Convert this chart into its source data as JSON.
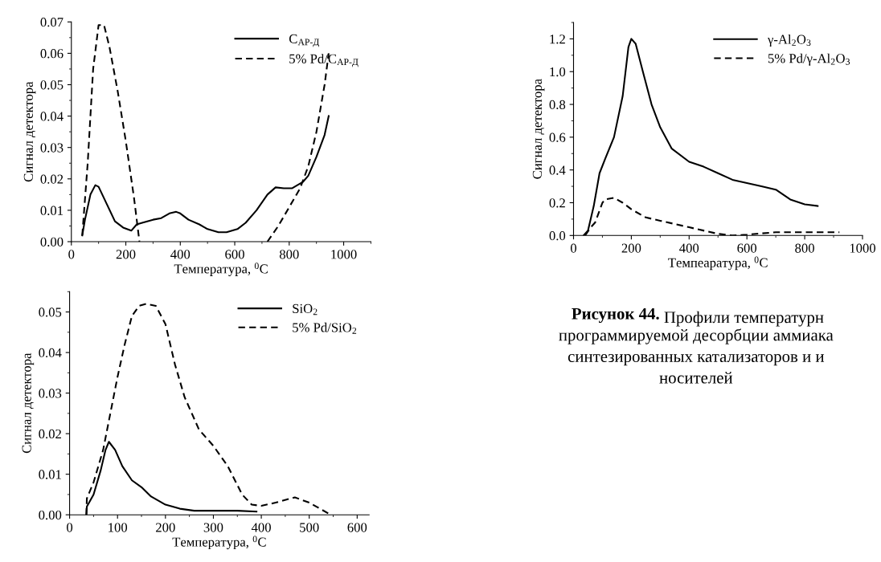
{
  "chart_data": [
    {
      "type": "line",
      "xlabel": "Температура, $^{0}$C",
      "ylabel": "Сигнал детектора",
      "xlim": [
        0,
        1100
      ],
      "xticks": [
        0,
        200,
        400,
        600,
        800,
        1000
      ],
      "ylim": [
        0,
        0.07
      ],
      "yticks": [
        {
          "value": 0,
          "label": "0.00"
        },
        {
          "value": 0.01,
          "label": "0.01"
        },
        {
          "value": 0.02,
          "label": "0.02"
        },
        {
          "value": 0.03,
          "label": "0.03"
        },
        {
          "value": 0.04,
          "label": "0.04"
        },
        {
          "value": 0.05,
          "label": "0.05"
        },
        {
          "value": 0.06,
          "label": "0.06"
        },
        {
          "value": 0.07,
          "label": "0.07"
        }
      ],
      "legend": "top right",
      "grid": false,
      "series": [
        {
          "name": "C$_{АР-Д}$",
          "color": "#000000",
          "line_style": "solid",
          "x": [
            40,
            50,
            70,
            88,
            100,
            130,
            160,
            190,
            220,
            240,
            260,
            300,
            330,
            360,
            385,
            400,
            430,
            470,
            500,
            540,
            570,
            610,
            640,
            680,
            720,
            750,
            780,
            810,
            850,
            870,
            900,
            930,
            945
          ],
          "values": [
            0.002,
            0.007,
            0.015,
            0.018,
            0.0175,
            0.012,
            0.0065,
            0.0045,
            0.0035,
            0.0055,
            0.006,
            0.007,
            0.0075,
            0.009,
            0.0095,
            0.009,
            0.007,
            0.0055,
            0.004,
            0.003,
            0.003,
            0.004,
            0.006,
            0.01,
            0.015,
            0.0173,
            0.017,
            0.017,
            0.019,
            0.021,
            0.027,
            0.034,
            0.04
          ]
        },
        {
          "name": "5% Pd/C$_{АР-Д}$",
          "color": "#000000",
          "line_style": "dashed",
          "x": [
            40,
            60,
            80,
            100,
            120,
            140,
            170,
            200,
            230,
            250,
            500,
            720,
            760,
            800,
            840,
            870,
            900,
            930,
            945
          ],
          "values": [
            0.002,
            0.025,
            0.055,
            0.069,
            0.069,
            0.062,
            0.048,
            0.032,
            0.014,
            0.0,
            null,
            0.0,
            0.005,
            0.011,
            0.017,
            0.024,
            0.035,
            0.05,
            0.06
          ]
        }
      ]
    },
    {
      "type": "line",
      "xlabel": "Темпеаратура, $^{0}$C",
      "ylabel": "Сигнал детектора",
      "xlim": [
        0,
        1000
      ],
      "xticks": [
        0,
        200,
        400,
        600,
        800,
        1000
      ],
      "ylim": [
        0,
        1.3
      ],
      "yticks": [
        {
          "value": 0,
          "label": "0.0"
        },
        {
          "value": 0.2,
          "label": "0.2"
        },
        {
          "value": 0.4,
          "label": "0.4"
        },
        {
          "value": 0.6,
          "label": "0.6"
        },
        {
          "value": 0.8,
          "label": "0.8"
        },
        {
          "value": 1.0,
          "label": "1.0"
        },
        {
          "value": 1.2,
          "label": "1.2"
        }
      ],
      "legend": "top right",
      "grid": false,
      "series": [
        {
          "name": "γ-Al$_{2}$O$_{3}$",
          "color": "#000000",
          "line_style": "solid",
          "x": [
            35,
            50,
            70,
            90,
            110,
            140,
            170,
            190,
            200,
            215,
            240,
            270,
            300,
            340,
            400,
            450,
            500,
            550,
            600,
            650,
            700,
            750,
            800,
            845
          ],
          "values": [
            0,
            0.03,
            0.18,
            0.38,
            0.47,
            0.6,
            0.85,
            1.15,
            1.2,
            1.17,
            1.0,
            0.8,
            0.66,
            0.53,
            0.45,
            0.42,
            0.38,
            0.34,
            0.32,
            0.3,
            0.28,
            0.22,
            0.19,
            0.18
          ]
        },
        {
          "name": "5% Pd/γ-Al$_{2}$O$_{3}$",
          "color": "#000000",
          "line_style": "dashed",
          "x": [
            40,
            60,
            75,
            100,
            110,
            140,
            170,
            200,
            250,
            300,
            400,
            500,
            550,
            600,
            700,
            800,
            920
          ],
          "values": [
            0,
            0.05,
            0.08,
            0.2,
            0.22,
            0.23,
            0.2,
            0.16,
            0.11,
            0.09,
            0.05,
            0.01,
            0.0,
            0.005,
            0.02,
            0.02,
            0.02
          ]
        }
      ]
    },
    {
      "type": "line",
      "xlabel": "Температура, $^{0}$C",
      "ylabel": "Сигнал детектора",
      "xlim": [
        0,
        625
      ],
      "xticks": [
        0,
        100,
        200,
        300,
        400,
        500,
        600
      ],
      "ylim": [
        0,
        0.055
      ],
      "yticks": [
        {
          "value": 0,
          "label": "0.00"
        },
        {
          "value": 0.01,
          "label": "0.01"
        },
        {
          "value": 0.02,
          "label": "0.02"
        },
        {
          "value": 0.03,
          "label": "0.03"
        },
        {
          "value": 0.04,
          "label": "0.04"
        },
        {
          "value": 0.05,
          "label": "0.05"
        }
      ],
      "legend": "top right",
      "grid": false,
      "series": [
        {
          "name": "SiO$_{2}$",
          "color": "#000000",
          "line_style": "solid",
          "x": [
            35,
            36,
            50,
            65,
            75,
            82,
            95,
            110,
            130,
            150,
            170,
            200,
            230,
            260,
            300,
            350,
            390
          ],
          "values": [
            0.0,
            0.002,
            0.005,
            0.011,
            0.016,
            0.018,
            0.016,
            0.012,
            0.0085,
            0.0068,
            0.0045,
            0.0025,
            0.0015,
            0.001,
            0.001,
            0.001,
            0.0008
          ]
        },
        {
          "name": "5% Pd/SiO$_{2}$",
          "color": "#000000",
          "line_style": "dashed",
          "x": [
            35,
            36,
            50,
            70,
            85,
            100,
            115,
            130,
            145,
            160,
            180,
            200,
            220,
            240,
            270,
            300,
            330,
            360,
            380,
            400,
            430,
            470,
            500,
            545
          ],
          "values": [
            0.0,
            0.004,
            0.008,
            0.016,
            0.025,
            0.034,
            0.042,
            0.049,
            0.0515,
            0.052,
            0.0515,
            0.047,
            0.037,
            0.029,
            0.021,
            0.017,
            0.012,
            0.005,
            0.0025,
            0.0022,
            0.003,
            0.0043,
            0.003,
            0.0
          ]
        }
      ]
    },
    {
      "type": "other",
      "annotations": [
        "Рисунок 44.",
        "Профили температурн",
        "программируемой десорбции аммиака",
        "синтезированных катализаторов и и",
        "носителей"
      ]
    }
  ]
}
